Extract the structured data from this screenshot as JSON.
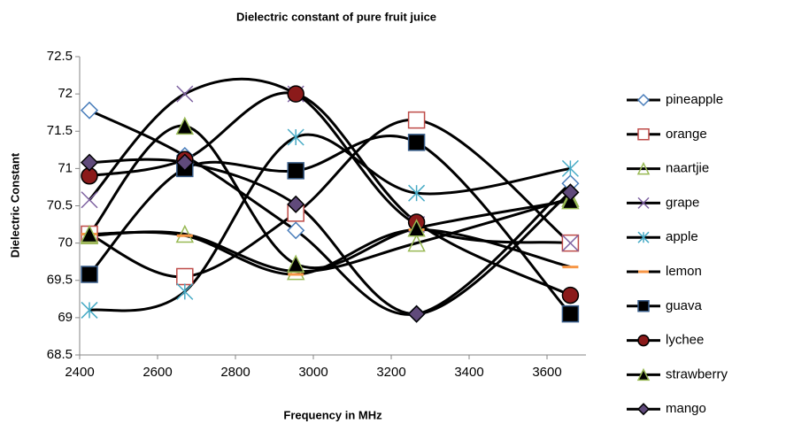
{
  "chart_data": {
    "type": "line",
    "title": "Dielectric constant of pure fruit juice",
    "xlabel": "Frequency in MHz",
    "ylabel": "Dielectric Constant",
    "x": [
      2425,
      2670,
      2955,
      3265,
      3660
    ],
    "xlim": [
      2400,
      3700
    ],
    "xticks": [
      2400,
      2600,
      2800,
      3000,
      3200,
      3400,
      3600
    ],
    "ylim": [
      68.5,
      72.5
    ],
    "yticks": [
      68.5,
      69,
      69.5,
      70,
      70.5,
      71,
      71.5,
      72,
      72.5
    ],
    "grid": false,
    "smooth": true,
    "line_color": "#000000",
    "legend": "right",
    "series": [
      {
        "name": "pineapple",
        "color": "#4a7ebb",
        "marker": "diamond-open",
        "values": [
          71.78,
          71.17,
          70.17,
          69.05,
          70.8
        ]
      },
      {
        "name": "orange",
        "color": "#be4b48",
        "marker": "square-open",
        "values": [
          70.12,
          69.55,
          70.4,
          71.65,
          70.0
        ]
      },
      {
        "name": "naartjie",
        "color": "#98b954",
        "marker": "triangle-open",
        "values": [
          70.1,
          70.12,
          69.62,
          70.0,
          70.6
        ]
      },
      {
        "name": "grape",
        "color": "#7d60a0",
        "marker": "x",
        "values": [
          70.58,
          72.0,
          72.0,
          70.25,
          70.0
        ]
      },
      {
        "name": "apple",
        "color": "#46aac5",
        "marker": "asterisk",
        "values": [
          69.1,
          69.35,
          71.42,
          70.67,
          71.0
        ]
      },
      {
        "name": "lemon",
        "color": "#f79646",
        "marker": "dash",
        "values": [
          70.12,
          70.1,
          69.58,
          70.18,
          69.68
        ]
      },
      {
        "name": "guava",
        "color": "#000000",
        "marker": "square",
        "values": [
          69.58,
          71.0,
          70.97,
          71.35,
          69.05
        ]
      },
      {
        "name": "lychee",
        "color": "#8b1a1a",
        "marker": "circle",
        "values": [
          70.9,
          71.12,
          72.0,
          70.28,
          69.3
        ]
      },
      {
        "name": "strawberry",
        "color": "#000000",
        "marker": "triangle",
        "values": [
          70.12,
          71.57,
          69.72,
          70.2,
          70.57
        ]
      },
      {
        "name": "mango",
        "color": "#604a7b",
        "marker": "diamond",
        "values": [
          71.08,
          71.08,
          70.52,
          69.05,
          70.68
        ]
      }
    ]
  }
}
